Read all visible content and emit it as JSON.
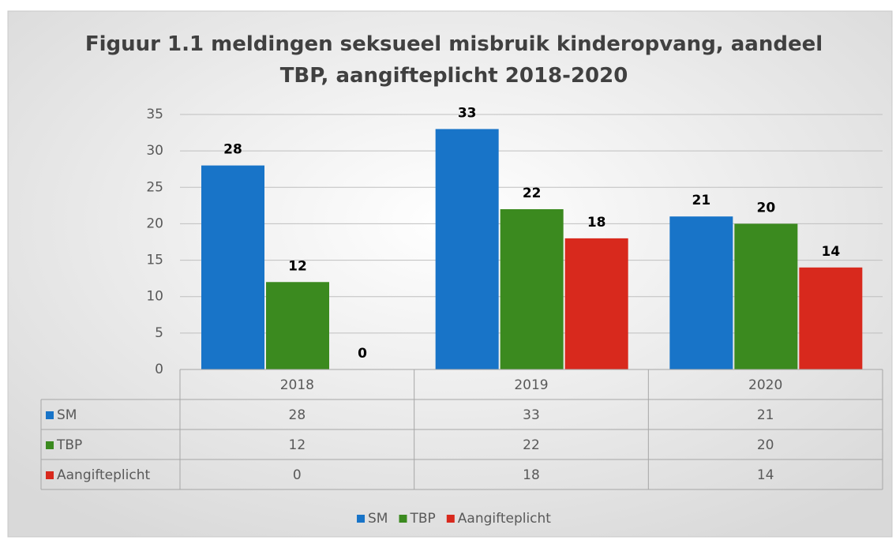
{
  "chart_data": {
    "type": "bar",
    "title": "Figuur 1.1 meldingen seksueel misbruik kinderopvang, aandeel TBP, aangifteplicht 2018-2020",
    "categories": [
      "2018",
      "2019",
      "2020"
    ],
    "series": [
      {
        "name": "SM",
        "color": "#1874c8",
        "values": [
          28,
          33,
          21
        ]
      },
      {
        "name": "TBP",
        "color": "#3b8a1f",
        "values": [
          12,
          22,
          20
        ]
      },
      {
        "name": "Aangifteplicht",
        "color": "#d8291d",
        "values": [
          0,
          18,
          14
        ]
      }
    ],
    "ylim": [
      0,
      35
    ],
    "yticks": [
      0,
      5,
      10,
      15,
      20,
      25,
      30,
      35
    ],
    "grid": true,
    "legend": "bottom",
    "data_table": true
  }
}
